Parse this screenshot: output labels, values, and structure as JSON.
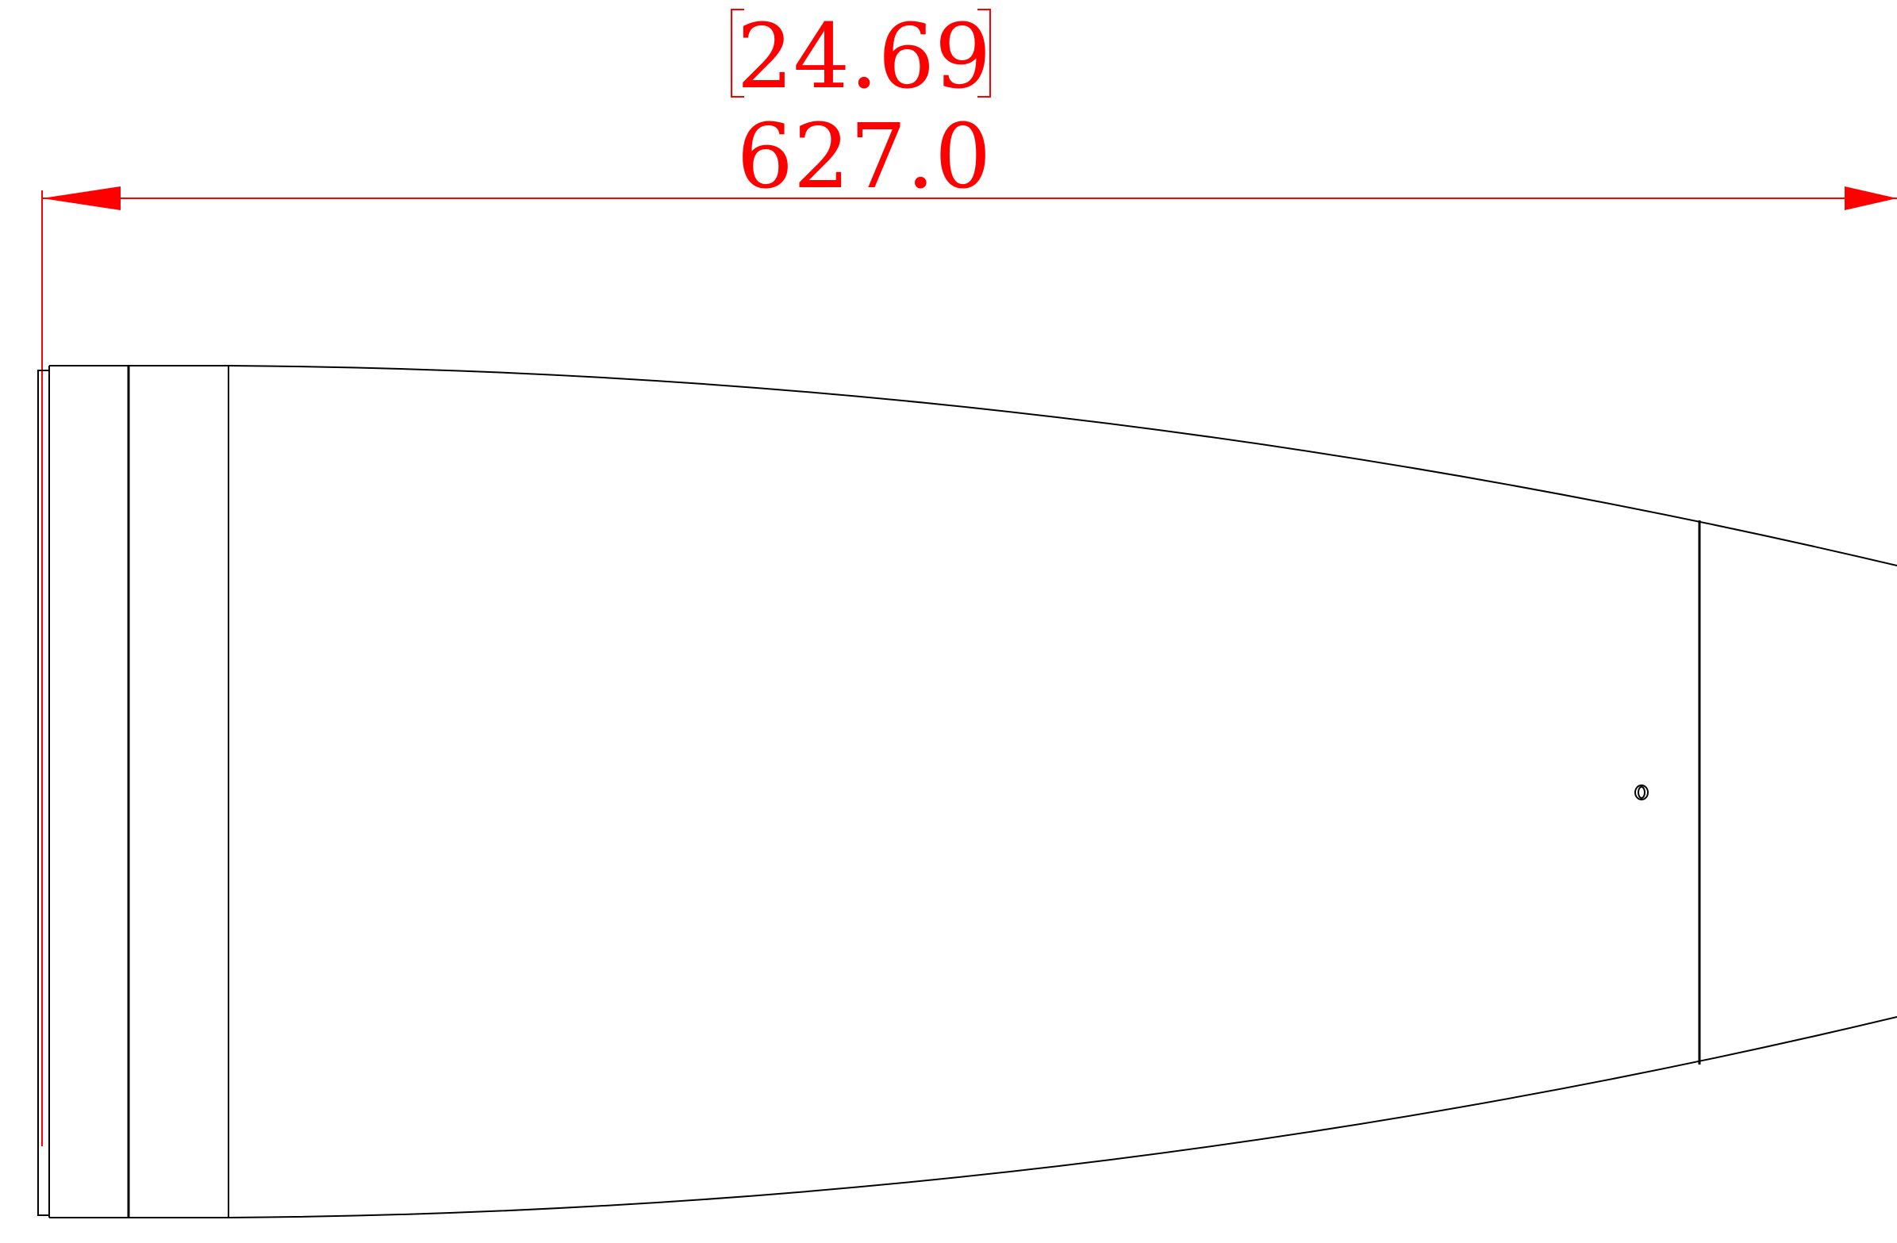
{
  "dimension": {
    "inches": "24.69",
    "millimeters": "627.0",
    "color": "#ff0000"
  },
  "outline_color": "#000000",
  "background": "#ffffff"
}
